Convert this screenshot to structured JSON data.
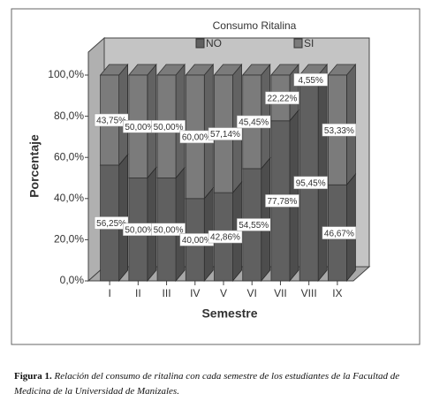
{
  "chart_data": {
    "type": "stacked_bar_3d",
    "title": "Consumo Ritalina",
    "x_label": "Semestre",
    "y_label": "Porcentaje",
    "categories": [
      "I",
      "II",
      "III",
      "IV",
      "V",
      "VI",
      "VII",
      "VIII",
      "IX"
    ],
    "series": [
      {
        "name": "NO",
        "color": "#606060",
        "values": [
          56.25,
          50,
          50,
          40,
          42.86,
          54.55,
          77.78,
          95.45,
          46.67
        ],
        "value_labels": [
          "56,25%",
          "50,00%",
          "50,00%",
          "40,00%",
          "42,86%",
          "54,55%",
          "77,78%",
          "95,45%",
          "46,67%"
        ]
      },
      {
        "name": "SI",
        "color": "#7b7b7b",
        "values": [
          43.75,
          50,
          50,
          60,
          57.14,
          45.45,
          22.22,
          4.55,
          53.33
        ],
        "value_labels": [
          "43,75%",
          "50,00%",
          "50,00%",
          "60,00%",
          "57,14%",
          "45,45%",
          "22,22%",
          "4,55%",
          "53,33%"
        ]
      }
    ],
    "ylim": [
      0,
      100
    ],
    "yticks": [
      {
        "value": 0,
        "label": "0,0%"
      },
      {
        "value": 20,
        "label": "20,0%"
      },
      {
        "value": 40,
        "label": "40,0%"
      },
      {
        "value": 60,
        "label": "60,0%"
      },
      {
        "value": 80,
        "label": "80,0%"
      },
      {
        "value": 100,
        "label": "100,0%"
      }
    ],
    "legend": "top"
  },
  "caption": {
    "label": "Figura 1.",
    "text": "Relación del consumo de ritalina con cada semestre de los estudiantes de la Facultad de Medicina de la Universidad de Manizales."
  }
}
